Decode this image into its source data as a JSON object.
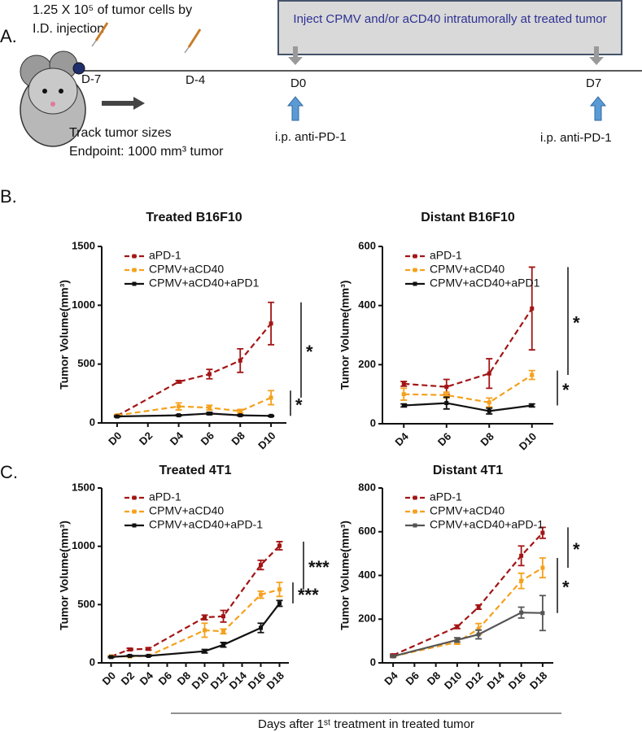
{
  "panel_labels": [
    "A.",
    "B.",
    "C."
  ],
  "schematic": {
    "injection_line1": "1.25 X 10⁵ of tumor cells by",
    "injection_line2": "I.D. injection",
    "treatment_box": "Inject CPMV and/or aCD40 intratumorally at treated tumor",
    "days": [
      "D-7",
      "D-4",
      "D0",
      "D7"
    ],
    "anti_pd1": [
      "i.p. anti-PD-1",
      "i.p. anti-PD-1"
    ],
    "track": "Track tumor sizes",
    "endpoint": "Endpoint: 1000 mm³ tumor"
  },
  "chart_data": [
    {
      "type": "line",
      "title": "Treated B16F10",
      "y_label": "Tumor Volume(mm³)",
      "xlim": [
        -1,
        11
      ],
      "xticks": [
        {
          "value": 0,
          "label": "D0"
        },
        {
          "value": 2,
          "label": "D2"
        },
        {
          "value": 4,
          "label": "D4"
        },
        {
          "value": 6,
          "label": "D6"
        },
        {
          "value": 8,
          "label": "D8"
        },
        {
          "value": 10,
          "label": "D10"
        }
      ],
      "ylim": [
        0,
        1500
      ],
      "yticks": [
        0,
        500,
        1000,
        1500
      ],
      "series": [
        {
          "name": "aPD-1",
          "color": "#a31515",
          "line_style": "dashed",
          "x": [
            0,
            4,
            6,
            8,
            10
          ],
          "values": [
            60,
            350,
            415,
            530,
            845
          ],
          "errors": [
            5,
            10,
            40,
            100,
            180
          ]
        },
        {
          "name": "CPMV+aCD40",
          "color": "#f5a11c",
          "line_style": "dashed",
          "x": [
            0,
            4,
            6,
            8,
            10
          ],
          "values": [
            65,
            140,
            130,
            100,
            215
          ],
          "errors": [
            5,
            30,
            20,
            15,
            60
          ]
        },
        {
          "name": "CPMV+aCD40+aPD1",
          "color": "#111111",
          "line_style": "solid",
          "x": [
            0,
            4,
            6,
            8,
            10
          ],
          "values": [
            55,
            65,
            80,
            65,
            60
          ],
          "errors": [
            5,
            5,
            10,
            5,
            5
          ]
        }
      ],
      "annotations": [
        "*",
        "*"
      ]
    },
    {
      "type": "line",
      "title": "Distant B16F10",
      "y_label": "Tumor Volume(mm³)",
      "xlim": [
        3,
        11
      ],
      "xticks": [
        {
          "value": 4,
          "label": "D4"
        },
        {
          "value": 6,
          "label": "D6"
        },
        {
          "value": 8,
          "label": "D8"
        },
        {
          "value": 10,
          "label": "D10"
        }
      ],
      "ylim": [
        0,
        600
      ],
      "yticks": [
        0,
        200,
        400,
        600
      ],
      "series": [
        {
          "name": "aPD-1",
          "color": "#a31515",
          "line_style": "dashed",
          "x": [
            4,
            6,
            8,
            10
          ],
          "values": [
            135,
            125,
            170,
            390
          ],
          "errors": [
            8,
            25,
            50,
            140
          ]
        },
        {
          "name": "CPMV+aCD40",
          "color": "#f5a11c",
          "line_style": "dashed",
          "x": [
            4,
            6,
            8,
            10
          ],
          "values": [
            100,
            97,
            72,
            165
          ],
          "errors": [
            20,
            10,
            15,
            15
          ]
        },
        {
          "name": "CPMV+aCD40+aPD1",
          "color": "#111111",
          "line_style": "solid",
          "x": [
            4,
            6,
            8,
            10
          ],
          "values": [
            62,
            70,
            43,
            62
          ],
          "errors": [
            5,
            20,
            10,
            5
          ]
        }
      ],
      "annotations": [
        "*",
        "*"
      ]
    },
    {
      "type": "line",
      "title": "Treated 4T1",
      "y_label": "Tumor Volume(mm³)",
      "xlim": [
        -1,
        19
      ],
      "xticks": [
        {
          "value": 0,
          "label": "D0"
        },
        {
          "value": 2,
          "label": "D2"
        },
        {
          "value": 4,
          "label": "D4"
        },
        {
          "value": 6,
          "label": "D6"
        },
        {
          "value": 8,
          "label": "D8"
        },
        {
          "value": 10,
          "label": "D10"
        },
        {
          "value": 12,
          "label": "D12"
        },
        {
          "value": 14,
          "label": "D14"
        },
        {
          "value": 16,
          "label": "D16"
        },
        {
          "value": 18,
          "label": "D18"
        }
      ],
      "ylim": [
        0,
        1500
      ],
      "yticks": [
        0,
        500,
        1000,
        1500
      ],
      "series": [
        {
          "name": "aPD-1",
          "color": "#a31515",
          "line_style": "dashed",
          "x": [
            0,
            2,
            4,
            10,
            12,
            16,
            18
          ],
          "values": [
            55,
            115,
            120,
            390,
            400,
            840,
            1005
          ],
          "errors": [
            5,
            10,
            10,
            20,
            50,
            40,
            35
          ]
        },
        {
          "name": "CPMV+aCD40",
          "color": "#f5a11c",
          "line_style": "dashed",
          "x": [
            0,
            2,
            4,
            10,
            12,
            16,
            18
          ],
          "values": [
            55,
            55,
            60,
            280,
            270,
            585,
            630
          ],
          "errors": [
            5,
            5,
            5,
            60,
            20,
            30,
            60
          ]
        },
        {
          "name": "CPMV+aCD40+aPD-1",
          "color": "#111111",
          "line_style": "solid",
          "x": [
            0,
            2,
            4,
            10,
            12,
            16,
            18
          ],
          "values": [
            50,
            60,
            60,
            100,
            155,
            300,
            510
          ],
          "errors": [
            5,
            5,
            5,
            15,
            20,
            40,
            25
          ]
        }
      ],
      "annotations": [
        "***",
        "***"
      ]
    },
    {
      "type": "line",
      "title": "Distant 4T1",
      "y_label": "Tumor Volume(mm³)",
      "xlim": [
        3,
        19
      ],
      "xticks": [
        {
          "value": 4,
          "label": "D4"
        },
        {
          "value": 6,
          "label": "D6"
        },
        {
          "value": 8,
          "label": "D8"
        },
        {
          "value": 10,
          "label": "D10"
        },
        {
          "value": 12,
          "label": "D12"
        },
        {
          "value": 14,
          "label": "D14"
        },
        {
          "value": 16,
          "label": "D16"
        },
        {
          "value": 18,
          "label": "D18"
        }
      ],
      "ylim": [
        0,
        800
      ],
      "yticks": [
        0,
        200,
        400,
        600,
        800
      ],
      "series": [
        {
          "name": "aPD-1",
          "color": "#a31515",
          "line_style": "dashed",
          "x": [
            4,
            10,
            12,
            16,
            18
          ],
          "values": [
            35,
            165,
            255,
            490,
            595
          ],
          "errors": [
            5,
            8,
            10,
            45,
            25
          ]
        },
        {
          "name": "CPMV+aCD40",
          "color": "#f5a11c",
          "line_style": "dashed",
          "x": [
            4,
            10,
            12,
            16,
            18
          ],
          "values": [
            30,
            95,
            155,
            375,
            435
          ],
          "errors": [
            5,
            10,
            25,
            35,
            45
          ]
        },
        {
          "name": "CPMV+aCD40+aPD-1",
          "color": "#555555",
          "line_style": "solid",
          "x": [
            4,
            10,
            12,
            16,
            18
          ],
          "values": [
            30,
            105,
            130,
            230,
            228
          ],
          "errors": [
            5,
            10,
            20,
            25,
            80
          ]
        }
      ],
      "annotations": [
        "*",
        "*"
      ]
    }
  ],
  "footer": "Days after 1ˢᵗ treatment in treated tumor"
}
